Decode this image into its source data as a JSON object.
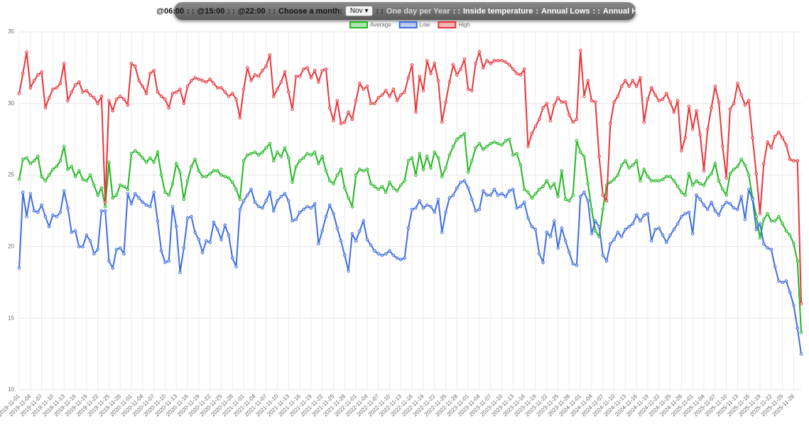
{
  "toolbar": {
    "items": [
      "@06:00",
      ": :",
      "@15:00",
      ": :",
      "@22:00",
      ": :",
      "Choose a month:",
      ": :",
      "One day per Year",
      ": :",
      "Inside temperature",
      ":",
      "Annual Lows",
      ": :",
      "Annual Highs"
    ],
    "month": "Nov"
  },
  "chart_data": {
    "type": "line",
    "categories": [
      "2019-11-01",
      null,
      null,
      "2019-11-04",
      null,
      null,
      "2019-11-07",
      null,
      null,
      "2019-11-10",
      null,
      null,
      "2019-11-13",
      null,
      null,
      "2019-11-16",
      null,
      null,
      "2019-11-19",
      null,
      null,
      "2019-11-22",
      null,
      null,
      "2019-11-25",
      null,
      null,
      "2019-11-28",
      null,
      null,
      "2020-11-01",
      null,
      null,
      "2020-11-04",
      null,
      null,
      "2020-11-07",
      null,
      null,
      "2020-11-10",
      null,
      null,
      "2020-11-13",
      null,
      null,
      "2020-11-16",
      null,
      null,
      "2020-11-19",
      null,
      null,
      "2020-11-22",
      null,
      null,
      "2020-11-25",
      null,
      null,
      "2020-11-28",
      null,
      null,
      "2021-11-01",
      null,
      null,
      "2021-11-04",
      null,
      null,
      "2021-11-07",
      null,
      null,
      "2021-11-10",
      null,
      null,
      "2021-11-13",
      null,
      null,
      "2021-11-16",
      null,
      null,
      "2021-11-19",
      null,
      null,
      "2021-11-22",
      null,
      null,
      "2021-11-25",
      null,
      null,
      "2021-11-28",
      null,
      null,
      "2022-11-01",
      null,
      null,
      "2022-11-04",
      null,
      null,
      "2022-11-07",
      null,
      null,
      "2022-11-10",
      null,
      null,
      "2022-11-13",
      null,
      null,
      "2022-11-16",
      null,
      null,
      "2022-11-19",
      null,
      null,
      "2022-11-22",
      null,
      null,
      "2022-11-25",
      null,
      null,
      "2022-11-28",
      null,
      null,
      "2023-11-01",
      null,
      null,
      "2023-11-04",
      null,
      null,
      "2023-11-07",
      null,
      null,
      "2023-11-10",
      null,
      null,
      "2023-11-13",
      null,
      null,
      "2023-11-16",
      null,
      null,
      "2023-11-19",
      null,
      null,
      "2023-11-22",
      null,
      null,
      "2023-11-25",
      null,
      null,
      "2023-11-28",
      null,
      null,
      "2024-11-01",
      null,
      null,
      "2024-11-04",
      null,
      null,
      "2024-11-07",
      null,
      null,
      "2024-11-10",
      null,
      null,
      "2024-11-13",
      null,
      null,
      "2024-11-16",
      null,
      null,
      "2024-11-19",
      null,
      null,
      "2024-11-22",
      null,
      null,
      "2024-11-25",
      null,
      null,
      "2024-11-28",
      null,
      null,
      "2025-11-01",
      null,
      null,
      "2025-11-04",
      null,
      null,
      "2025-11-07",
      null,
      null,
      "2025-11-10",
      null,
      null,
      "2025-11-13",
      null,
      null,
      "2025-11-16",
      null,
      null,
      "2025-11-19",
      null,
      null,
      "2025-11-22",
      null,
      null,
      "2025-11-25",
      null,
      null,
      "2025-11-28",
      null,
      null
    ],
    "series": [
      {
        "name": "Average",
        "color": "#22b822",
        "values": [
          24.7,
          26.1,
          26.2,
          25.8,
          26.0,
          26.3,
          24.9,
          24.6,
          25.0,
          25.4,
          25.6,
          26.0,
          27.0,
          25.4,
          25.6,
          24.9,
          25.3,
          24.7,
          24.6,
          25.0,
          24.3,
          23.6,
          24.1,
          22.8,
          25.9,
          23.4,
          23.6,
          24.3,
          24.2,
          24.0,
          26.5,
          26.7,
          26.5,
          26.2,
          25.9,
          26.2,
          25.9,
          26.6,
          25.0,
          23.8,
          23.6,
          24.4,
          25.8,
          25.2,
          23.3,
          24.6,
          25.6,
          26.1,
          25.3,
          24.9,
          24.9,
          25.1,
          25.3,
          25.3,
          25.0,
          24.9,
          24.8,
          24.5,
          24.0,
          23.3,
          26.0,
          26.4,
          26.5,
          26.6,
          26.4,
          26.6,
          26.9,
          27.2,
          26.0,
          26.6,
          26.3,
          26.9,
          26.2,
          24.5,
          25.6,
          26.0,
          26.2,
          26.5,
          26.4,
          26.6,
          25.8,
          26.3,
          25.3,
          24.6,
          24.4,
          25.0,
          25.4,
          24.1,
          23.4,
          22.8,
          25.0,
          25.4,
          25.3,
          25.4,
          24.4,
          24.2,
          24.0,
          24.2,
          23.8,
          24.5,
          24.1,
          23.9,
          24.3,
          24.6,
          26.0,
          26.2,
          25.0,
          26.5,
          25.4,
          26.3,
          25.5,
          26.6,
          26.2,
          24.9,
          25.5,
          26.4,
          27.0,
          27.5,
          27.7,
          27.9,
          25.2,
          26.0,
          26.9,
          27.2,
          26.8,
          27.0,
          27.2,
          27.3,
          27.2,
          27.1,
          27.4,
          27.5,
          26.4,
          26.5,
          25.7,
          24.0,
          23.8,
          23.4,
          23.7,
          24.0,
          24.2,
          24.6,
          24.1,
          24.4,
          23.5,
          25.3,
          23.3,
          23.2,
          23.6,
          27.4,
          26.6,
          26.3,
          24.4,
          22.6,
          21.1,
          20.7,
          22.6,
          24.3,
          24.5,
          24.7,
          25.0,
          25.7,
          26.0,
          25.5,
          25.7,
          26.0,
          24.6,
          25.4,
          24.9,
          24.6,
          24.6,
          24.6,
          24.7,
          24.9,
          24.9,
          24.6,
          24.2,
          23.8,
          23.6,
          25.1,
          24.3,
          24.6,
          24.4,
          24.3,
          24.8,
          25.1,
          25.8,
          24.6,
          24.0,
          23.6,
          25.1,
          25.4,
          25.6,
          26.1,
          25.7,
          25.0,
          23.4,
          22.1,
          20.6,
          21.9,
          22.3,
          21.8,
          21.8,
          22.1,
          21.6,
          21.1,
          20.8,
          20.2,
          19.0,
          14.0
        ]
      },
      {
        "name": "Low",
        "color": "#3f6ee0",
        "values": [
          18.5,
          23.8,
          22.1,
          23.7,
          22.5,
          22.4,
          22.9,
          22.1,
          21.4,
          22.2,
          22.1,
          22.4,
          23.9,
          22.7,
          21.0,
          21.1,
          20.0,
          20.0,
          20.8,
          20.4,
          19.5,
          19.8,
          22.5,
          22.5,
          19.0,
          18.5,
          19.8,
          19.9,
          19.5,
          23.7,
          23.0,
          23.7,
          23.4,
          23.1,
          22.9,
          22.8,
          23.8,
          21.8,
          19.7,
          18.9,
          19.0,
          22.8,
          21.4,
          18.2,
          19.9,
          22.0,
          22.1,
          21.0,
          20.5,
          19.6,
          20.4,
          20.3,
          21.7,
          21.2,
          20.5,
          21.5,
          20.8,
          19.2,
          18.6,
          22.6,
          23.2,
          23.6,
          24.0,
          23.1,
          22.8,
          22.7,
          23.2,
          23.8,
          22.5,
          23.2,
          23.5,
          23.7,
          23.2,
          21.8,
          21.9,
          22.4,
          22.6,
          22.8,
          22.7,
          23.0,
          20.2,
          21.1,
          22.1,
          22.9,
          22.3,
          21.3,
          20.4,
          19.4,
          18.3,
          20.9,
          20.4,
          21.1,
          21.8,
          20.5,
          20.1,
          19.7,
          19.5,
          19.4,
          19.5,
          19.7,
          19.4,
          19.2,
          19.1,
          19.2,
          21.3,
          22.6,
          22.7,
          23.2,
          22.7,
          22.9,
          22.8,
          22.4,
          23.3,
          21.0,
          22.4,
          23.4,
          23.6,
          24.1,
          24.5,
          24.6,
          24.1,
          23.3,
          22.5,
          22.6,
          23.9,
          23.6,
          23.6,
          24.0,
          23.6,
          23.7,
          23.5,
          23.9,
          24.0,
          22.7,
          22.8,
          23.1,
          22.0,
          21.4,
          21.2,
          19.5,
          18.9,
          21.0,
          20.7,
          21.8,
          19.9,
          21.3,
          20.4,
          19.6,
          18.8,
          18.7,
          23.5,
          23.8,
          23.2,
          20.9,
          21.8,
          21.4,
          19.4,
          19.0,
          20.2,
          20.5,
          21.0,
          20.7,
          21.2,
          21.4,
          21.6,
          22.2,
          21.8,
          22.2,
          22.3,
          20.4,
          21.2,
          21.3,
          20.8,
          20.3,
          20.8,
          21.2,
          21.6,
          22.1,
          22.3,
          22.4,
          20.9,
          23.6,
          23.3,
          22.9,
          22.6,
          23.1,
          22.5,
          22.2,
          22.8,
          23.1,
          23.0,
          22.7,
          22.6,
          23.5,
          21.9,
          24.0,
          23.3,
          21.2,
          21.6,
          20.2,
          19.9,
          19.8,
          18.6,
          17.6,
          17.5,
          17.6,
          16.8,
          15.9,
          14.3,
          12.5
        ]
      },
      {
        "name": "High",
        "color": "#e8353b",
        "values": [
          30.7,
          32.1,
          33.6,
          31.1,
          31.6,
          32.0,
          32.2,
          29.7,
          30.4,
          31.0,
          31.1,
          31.4,
          32.8,
          30.2,
          30.8,
          31.3,
          31.5,
          30.8,
          30.9,
          30.6,
          30.4,
          30.0,
          30.5,
          23.1,
          30.2,
          29.5,
          30.3,
          30.5,
          30.3,
          29.9,
          32.8,
          32.6,
          31.6,
          31.2,
          30.7,
          32.1,
          32.3,
          30.8,
          30.5,
          30.3,
          29.7,
          30.7,
          30.8,
          31.0,
          30.0,
          31.2,
          31.6,
          31.8,
          31.7,
          31.6,
          31.5,
          31.7,
          31.4,
          31.1,
          31.1,
          30.8,
          30.5,
          30.7,
          30.3,
          29.0,
          31.0,
          32.5,
          31.6,
          32.0,
          31.9,
          32.3,
          32.6,
          33.4,
          30.5,
          31.0,
          31.5,
          32.2,
          30.8,
          29.6,
          31.9,
          31.9,
          32.4,
          32.5,
          31.8,
          32.3,
          31.5,
          32.3,
          32.4,
          29.7,
          28.8,
          30.2,
          28.6,
          28.7,
          29.4,
          28.9,
          30.2,
          31.4,
          31.0,
          31.2,
          30.0,
          30.0,
          30.4,
          30.6,
          30.9,
          30.5,
          31.0,
          30.2,
          30.6,
          30.8,
          31.8,
          32.7,
          29.4,
          31.9,
          30.9,
          33.0,
          32.1,
          32.8,
          31.6,
          28.7,
          30.1,
          31.5,
          32.7,
          32.0,
          32.4,
          33.1,
          31.0,
          30.9,
          32.8,
          33.6,
          32.5,
          33.0,
          32.8,
          33.0,
          33.0,
          33.0,
          32.9,
          32.7,
          32.4,
          32.1,
          32.0,
          32.4,
          27.0,
          27.9,
          28.4,
          28.9,
          29.7,
          30.0,
          28.8,
          29.9,
          30.4,
          30.1,
          30.1,
          29.2,
          28.7,
          28.9,
          33.7,
          30.5,
          31.6,
          30.2,
          30.1,
          26.3,
          23.6,
          23.2,
          28.6,
          30.1,
          30.5,
          31.2,
          31.6,
          31.2,
          31.6,
          31.2,
          31.8,
          28.7,
          30.3,
          31.1,
          30.6,
          30.2,
          30.3,
          30.7,
          30.1,
          29.4,
          30.2,
          26.7,
          27.6,
          29.8,
          28.2,
          29.5,
          27.8,
          25.3,
          28.2,
          29.7,
          31.2,
          30.1,
          27.0,
          24.8,
          29.6,
          30.0,
          31.4,
          30.6,
          29.9,
          30.2,
          27.6,
          25.1,
          22.3,
          25.8,
          27.3,
          26.9,
          27.7,
          28.0,
          27.6,
          27.1,
          26.1,
          26.0,
          26.0,
          16.0
        ]
      }
    ],
    "ylim": [
      10,
      35
    ],
    "yticks": [
      10,
      15,
      20,
      25,
      30,
      35
    ],
    "grid": true,
    "legend": "top"
  }
}
